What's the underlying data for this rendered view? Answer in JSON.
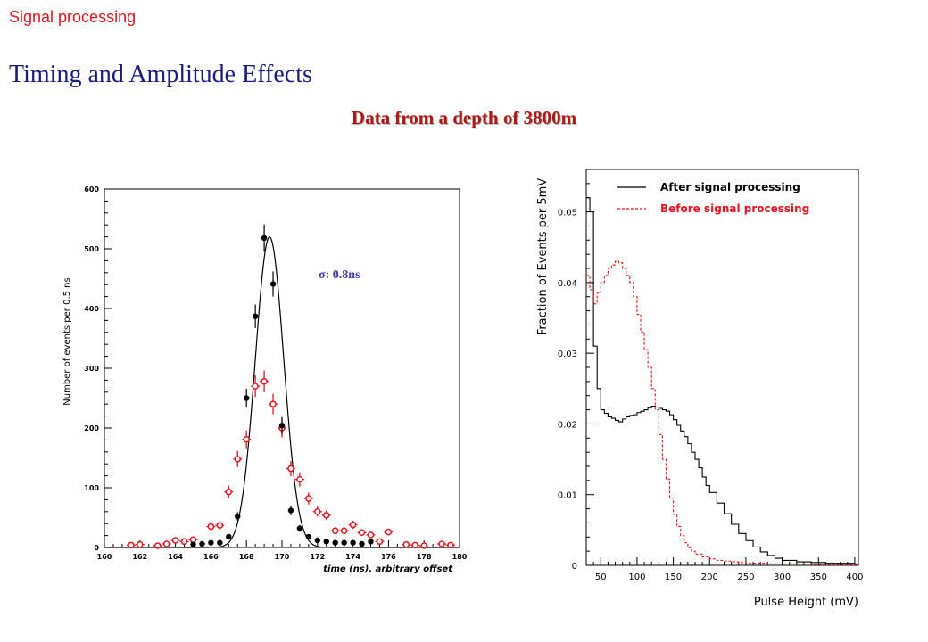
{
  "header": {
    "section": "Signal processing",
    "title": "Timing and Amplitude  Effects",
    "subtitle": "Data from a depth of 3800m"
  },
  "chart_data": [
    {
      "type": "scatter",
      "xlabel": "time (ns), arbitrary offset",
      "ylabel": "Number of events per 0.5 ns",
      "annotation": "σ: 0.8ns",
      "xlim": [
        160,
        180
      ],
      "ylim": [
        0,
        600
      ],
      "xticks": [
        160,
        162,
        164,
        166,
        168,
        170,
        172,
        174,
        176,
        178,
        180
      ],
      "yticks": [
        0,
        100,
        200,
        300,
        400,
        500,
        600
      ],
      "colors": {
        "after": "#000000",
        "before": "#e8141e",
        "annotation": "#3a3aa0"
      },
      "series": [
        {
          "style": "filled",
          "x": [
            165.0,
            165.5,
            166.0,
            166.5,
            167.0,
            167.5,
            168.0,
            168.5,
            169.0,
            169.5,
            170.0,
            170.5,
            171.0,
            171.5,
            172.0,
            172.5,
            173.0,
            173.5,
            174.0,
            174.5,
            175.0
          ],
          "y": [
            5,
            6,
            8,
            8,
            18,
            52,
            250,
            387,
            518,
            441,
            204,
            62,
            32,
            18,
            12,
            10,
            8,
            8,
            8,
            6,
            10
          ]
        },
        {
          "style": "open",
          "x": [
            161.5,
            162.0,
            163.0,
            163.5,
            164.0,
            164.5,
            165.0,
            166.0,
            166.5,
            167.0,
            167.5,
            168.0,
            168.5,
            169.0,
            169.5,
            170.0,
            170.5,
            171.0,
            171.5,
            172.0,
            172.5,
            173.0,
            173.5,
            174.0,
            174.5,
            175.0,
            175.5,
            176.0,
            177.0,
            177.5,
            178.0,
            179.0,
            179.5
          ],
          "y": [
            4,
            5,
            3,
            6,
            12,
            10,
            13,
            35,
            37,
            93,
            148,
            181,
            270,
            278,
            240,
            200,
            132,
            114,
            82,
            60,
            54,
            28,
            28,
            38,
            25,
            21,
            10,
            26,
            5,
            4,
            3,
            6,
            4
          ]
        },
        {
          "style": "fit",
          "mean": 169.3,
          "sigma": 0.8,
          "amplitude": 520
        }
      ]
    },
    {
      "type": "line",
      "xlabel": "Pulse Height (mV)",
      "ylabel": "Fraction of Events per 5mV",
      "xlim": [
        30,
        405
      ],
      "ylim": [
        0,
        0.056
      ],
      "xticks": [
        50,
        100,
        150,
        200,
        250,
        300,
        350,
        400
      ],
      "yticks": [
        0,
        0.01,
        0.02,
        0.03,
        0.04,
        0.05
      ],
      "legend_position": "top-right",
      "series": [
        {
          "name": "After signal processing",
          "color": "#000000",
          "style": "solid",
          "x": [
            30,
            35,
            40,
            45,
            50,
            55,
            60,
            65,
            70,
            75,
            80,
            85,
            90,
            95,
            100,
            105,
            110,
            115,
            120,
            125,
            130,
            135,
            140,
            145,
            150,
            155,
            160,
            165,
            170,
            175,
            180,
            185,
            190,
            195,
            200,
            210,
            220,
            230,
            240,
            250,
            260,
            270,
            280,
            290,
            300,
            320,
            340,
            360,
            380,
            400
          ],
          "y": [
            0.052,
            0.05,
            0.031,
            0.025,
            0.022,
            0.0215,
            0.021,
            0.0208,
            0.0205,
            0.0203,
            0.0207,
            0.021,
            0.0212,
            0.0213,
            0.0216,
            0.0218,
            0.022,
            0.0223,
            0.0225,
            0.0224,
            0.0222,
            0.022,
            0.0218,
            0.0213,
            0.0206,
            0.0198,
            0.019,
            0.0182,
            0.0172,
            0.016,
            0.015,
            0.0138,
            0.0125,
            0.0113,
            0.0103,
            0.0088,
            0.0073,
            0.0058,
            0.0045,
            0.0035,
            0.0026,
            0.0019,
            0.0014,
            0.001,
            0.0007,
            0.0005,
            0.0004,
            0.0003,
            0.0003,
            0.0002
          ]
        },
        {
          "name": "Before signal processing",
          "color": "#e8141e",
          "style": "dashed",
          "x": [
            30,
            35,
            40,
            45,
            50,
            55,
            60,
            65,
            70,
            75,
            80,
            85,
            90,
            95,
            100,
            105,
            110,
            115,
            120,
            125,
            130,
            135,
            140,
            145,
            150,
            155,
            160,
            165,
            170,
            175,
            180,
            190,
            200,
            210,
            220,
            230,
            240,
            250,
            260,
            280,
            300,
            320,
            340,
            360,
            380,
            400
          ],
          "y": [
            0.041,
            0.039,
            0.037,
            0.0385,
            0.04,
            0.041,
            0.042,
            0.0425,
            0.043,
            0.0428,
            0.042,
            0.041,
            0.04,
            0.038,
            0.0355,
            0.033,
            0.0305,
            0.028,
            0.025,
            0.022,
            0.0185,
            0.015,
            0.0122,
            0.0095,
            0.0072,
            0.0055,
            0.0042,
            0.0032,
            0.0025,
            0.002,
            0.0016,
            0.0012,
            0.0009,
            0.0007,
            0.0006,
            0.0005,
            0.0004,
            0.0003,
            0.0003,
            0.0002,
            0.0002,
            0.0002,
            0.0001,
            0.0001,
            0.0001,
            0.0001
          ]
        }
      ]
    }
  ]
}
